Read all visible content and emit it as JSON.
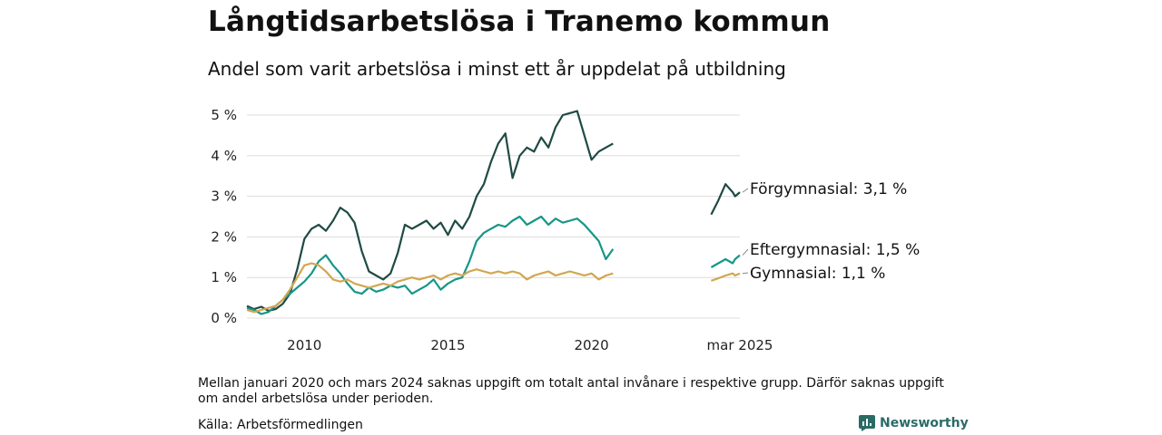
{
  "header": {
    "title": "Långtidsarbetslösa i Tranemo kommun",
    "subtitle": "Andel som varit arbetslösa i minst ett år uppdelat på utbildning"
  },
  "footer": {
    "note": "Mellan januari 2020 och mars 2024 saknas uppgift om totalt antal invånare i respektive grupp. Därför saknas uppgift om andel arbetslösa under perioden.",
    "source": "Källa: Arbetsförmedlingen",
    "brand": "Newsworthy"
  },
  "chart_data": {
    "type": "line",
    "y_unit": "%",
    "ylim": [
      0,
      5.2
    ],
    "y_ticks": [
      0,
      1,
      2,
      3,
      4,
      5
    ],
    "y_tick_labels": [
      "0 %",
      "1 %",
      "2 %",
      "3 %",
      "4 %",
      "5 %"
    ],
    "x_ticks": [
      2010,
      2015,
      2020
    ],
    "x_tick_labels": [
      "2010",
      "2015",
      "2020"
    ],
    "x_end_label": "mar 2025",
    "grid": true,
    "legend": "end-of-line labels",
    "series": [
      {
        "name": "Förgymnasial",
        "end_label": "Förgymnasial: 3,1 %",
        "color": "#1f4a44",
        "segments": [
          [
            [
              "2008-01",
              0.3
            ],
            [
              "2008-04",
              0.22
            ],
            [
              "2008-07",
              0.28
            ],
            [
              "2008-10",
              0.18
            ],
            [
              "2009-01",
              0.22
            ],
            [
              "2009-04",
              0.35
            ],
            [
              "2009-07",
              0.6
            ],
            [
              "2009-10",
              1.2
            ],
            [
              "2010-01",
              1.95
            ],
            [
              "2010-04",
              2.2
            ],
            [
              "2010-07",
              2.3
            ],
            [
              "2010-10",
              2.15
            ],
            [
              "2011-01",
              2.4
            ],
            [
              "2011-04",
              2.72
            ],
            [
              "2011-07",
              2.6
            ],
            [
              "2011-10",
              2.35
            ],
            [
              "2012-01",
              1.65
            ],
            [
              "2012-04",
              1.15
            ],
            [
              "2012-07",
              1.05
            ],
            [
              "2012-10",
              0.95
            ],
            [
              "2013-01",
              1.1
            ],
            [
              "2013-04",
              1.6
            ],
            [
              "2013-07",
              2.3
            ],
            [
              "2013-10",
              2.2
            ],
            [
              "2014-01",
              2.3
            ],
            [
              "2014-04",
              2.4
            ],
            [
              "2014-07",
              2.2
            ],
            [
              "2014-10",
              2.35
            ],
            [
              "2015-01",
              2.05
            ],
            [
              "2015-04",
              2.4
            ],
            [
              "2015-07",
              2.2
            ],
            [
              "2015-10",
              2.5
            ],
            [
              "2016-01",
              3.0
            ],
            [
              "2016-04",
              3.3
            ],
            [
              "2016-07",
              3.85
            ],
            [
              "2016-10",
              4.3
            ],
            [
              "2017-01",
              4.55
            ],
            [
              "2017-04",
              3.45
            ],
            [
              "2017-07",
              4.0
            ],
            [
              "2017-10",
              4.2
            ],
            [
              "2018-01",
              4.1
            ],
            [
              "2018-04",
              4.45
            ],
            [
              "2018-07",
              4.2
            ],
            [
              "2018-10",
              4.7
            ],
            [
              "2019-01",
              5.0
            ],
            [
              "2019-04",
              5.05
            ],
            [
              "2019-07",
              5.1
            ],
            [
              "2019-10",
              4.5
            ],
            [
              "2020-01",
              3.9
            ],
            [
              "2020-04",
              4.1
            ],
            [
              "2020-07",
              4.2
            ],
            [
              "2020-10",
              4.3
            ]
          ],
          [
            [
              "2024-03",
              2.55
            ],
            [
              "2024-06",
              2.9
            ],
            [
              "2024-09",
              3.3
            ],
            [
              "2024-12",
              3.1
            ],
            [
              "2025-01",
              3.0
            ],
            [
              "2025-03",
              3.1
            ]
          ]
        ]
      },
      {
        "name": "Eftergymnasial",
        "end_label": "Eftergymnasial: 1,5 %",
        "color": "#169687",
        "segments": [
          [
            [
              "2008-01",
              0.25
            ],
            [
              "2008-04",
              0.2
            ],
            [
              "2008-07",
              0.1
            ],
            [
              "2008-10",
              0.15
            ],
            [
              "2009-01",
              0.3
            ],
            [
              "2009-04",
              0.45
            ],
            [
              "2009-07",
              0.6
            ],
            [
              "2009-10",
              0.75
            ],
            [
              "2010-01",
              0.9
            ],
            [
              "2010-04",
              1.1
            ],
            [
              "2010-07",
              1.4
            ],
            [
              "2010-10",
              1.55
            ],
            [
              "2011-01",
              1.3
            ],
            [
              "2011-04",
              1.1
            ],
            [
              "2011-07",
              0.85
            ],
            [
              "2011-10",
              0.65
            ],
            [
              "2012-01",
              0.6
            ],
            [
              "2012-04",
              0.75
            ],
            [
              "2012-07",
              0.65
            ],
            [
              "2012-10",
              0.7
            ],
            [
              "2013-01",
              0.8
            ],
            [
              "2013-04",
              0.75
            ],
            [
              "2013-07",
              0.8
            ],
            [
              "2013-10",
              0.6
            ],
            [
              "2014-01",
              0.7
            ],
            [
              "2014-04",
              0.8
            ],
            [
              "2014-07",
              0.95
            ],
            [
              "2014-10",
              0.7
            ],
            [
              "2015-01",
              0.85
            ],
            [
              "2015-04",
              0.95
            ],
            [
              "2015-07",
              1.0
            ],
            [
              "2015-10",
              1.4
            ],
            [
              "2016-01",
              1.9
            ],
            [
              "2016-04",
              2.1
            ],
            [
              "2016-07",
              2.2
            ],
            [
              "2016-10",
              2.3
            ],
            [
              "2017-01",
              2.25
            ],
            [
              "2017-04",
              2.4
            ],
            [
              "2017-07",
              2.5
            ],
            [
              "2017-10",
              2.3
            ],
            [
              "2018-01",
              2.4
            ],
            [
              "2018-04",
              2.5
            ],
            [
              "2018-07",
              2.3
            ],
            [
              "2018-10",
              2.45
            ],
            [
              "2019-01",
              2.35
            ],
            [
              "2019-04",
              2.4
            ],
            [
              "2019-07",
              2.45
            ],
            [
              "2019-10",
              2.3
            ],
            [
              "2020-01",
              2.1
            ],
            [
              "2020-04",
              1.9
            ],
            [
              "2020-07",
              1.45
            ],
            [
              "2020-10",
              1.7
            ]
          ],
          [
            [
              "2024-03",
              1.25
            ],
            [
              "2024-06",
              1.35
            ],
            [
              "2024-09",
              1.45
            ],
            [
              "2024-12",
              1.35
            ],
            [
              "2025-01",
              1.45
            ],
            [
              "2025-03",
              1.55
            ]
          ]
        ]
      },
      {
        "name": "Gymnasial",
        "end_label": "Gymnasial: 1,1 %",
        "color": "#d1a650",
        "segments": [
          [
            [
              "2008-01",
              0.2
            ],
            [
              "2008-04",
              0.15
            ],
            [
              "2008-07",
              0.2
            ],
            [
              "2008-10",
              0.25
            ],
            [
              "2009-01",
              0.3
            ],
            [
              "2009-04",
              0.45
            ],
            [
              "2009-07",
              0.7
            ],
            [
              "2009-10",
              1.0
            ],
            [
              "2010-01",
              1.3
            ],
            [
              "2010-04",
              1.35
            ],
            [
              "2010-07",
              1.3
            ],
            [
              "2010-10",
              1.15
            ],
            [
              "2011-01",
              0.95
            ],
            [
              "2011-04",
              0.9
            ],
            [
              "2011-07",
              0.95
            ],
            [
              "2011-10",
              0.85
            ],
            [
              "2012-01",
              0.8
            ],
            [
              "2012-04",
              0.75
            ],
            [
              "2012-07",
              0.8
            ],
            [
              "2012-10",
              0.85
            ],
            [
              "2013-01",
              0.8
            ],
            [
              "2013-04",
              0.9
            ],
            [
              "2013-07",
              0.95
            ],
            [
              "2013-10",
              1.0
            ],
            [
              "2014-01",
              0.95
            ],
            [
              "2014-04",
              1.0
            ],
            [
              "2014-07",
              1.05
            ],
            [
              "2014-10",
              0.95
            ],
            [
              "2015-01",
              1.05
            ],
            [
              "2015-04",
              1.1
            ],
            [
              "2015-07",
              1.05
            ],
            [
              "2015-10",
              1.15
            ],
            [
              "2016-01",
              1.2
            ],
            [
              "2016-04",
              1.15
            ],
            [
              "2016-07",
              1.1
            ],
            [
              "2016-10",
              1.15
            ],
            [
              "2017-01",
              1.1
            ],
            [
              "2017-04",
              1.15
            ],
            [
              "2017-07",
              1.1
            ],
            [
              "2017-10",
              0.95
            ],
            [
              "2018-01",
              1.05
            ],
            [
              "2018-04",
              1.1
            ],
            [
              "2018-07",
              1.15
            ],
            [
              "2018-10",
              1.05
            ],
            [
              "2019-01",
              1.1
            ],
            [
              "2019-04",
              1.15
            ],
            [
              "2019-07",
              1.1
            ],
            [
              "2019-10",
              1.05
            ],
            [
              "2020-01",
              1.1
            ],
            [
              "2020-04",
              0.95
            ],
            [
              "2020-07",
              1.05
            ],
            [
              "2020-10",
              1.1
            ]
          ],
          [
            [
              "2024-03",
              0.92
            ],
            [
              "2024-06",
              0.98
            ],
            [
              "2024-09",
              1.05
            ],
            [
              "2024-12",
              1.1
            ],
            [
              "2025-01",
              1.05
            ],
            [
              "2025-03",
              1.1
            ]
          ]
        ]
      }
    ]
  }
}
